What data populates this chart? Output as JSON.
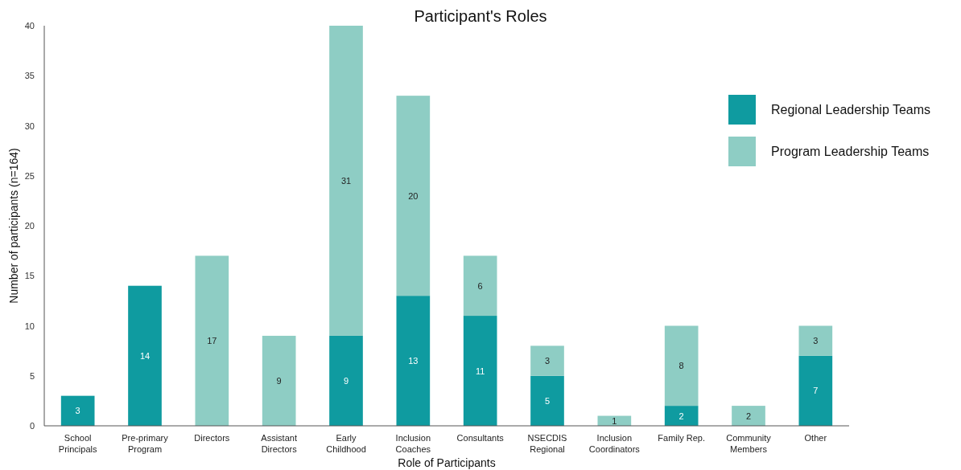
{
  "chart_data": {
    "type": "bar",
    "title": "Participant's Roles",
    "xlabel": "Role of Participants",
    "ylabel": "Number of participants (n=164)",
    "categories": [
      "School\nPrincipals",
      "Pre-primary\nProgram",
      "Directors",
      "Assistant\nDirectors",
      "Early\nChildhood",
      "Inclusion\nCoaches",
      "Consultants",
      "NSECDIS\nRegional",
      "Inclusion\nCoordinators",
      "Family Rep.",
      "Community\nMembers",
      "Other"
    ],
    "series": [
      {
        "name": "Regional Leadership Teams",
        "color": "#0f9ba0",
        "values": [
          3,
          14,
          null,
          null,
          9,
          13,
          11,
          5,
          null,
          2,
          null,
          7
        ]
      },
      {
        "name": "Program Leadership Teams",
        "color": "#8ecdc4",
        "values": [
          null,
          null,
          17,
          9,
          31,
          20,
          6,
          3,
          1,
          8,
          2,
          3
        ]
      }
    ],
    "stacked": true,
    "ylim": [
      0,
      40
    ],
    "yticks": [
      0,
      5,
      10,
      15,
      20,
      25,
      30,
      35,
      40
    ],
    "grid": false,
    "legend": "top right",
    "data_labels": true
  }
}
